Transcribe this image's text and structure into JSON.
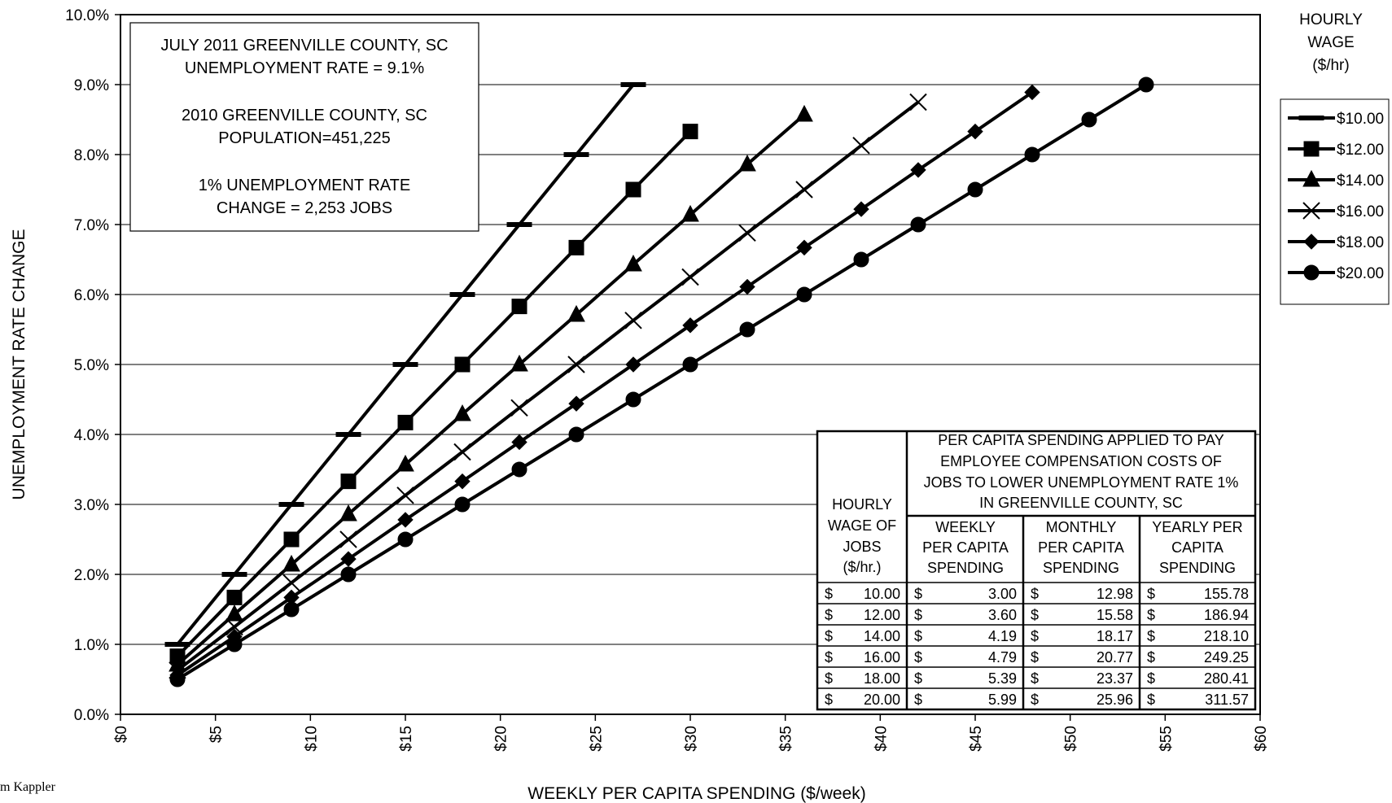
{
  "chart_data": {
    "type": "line",
    "xlabel": "WEEKLY PER CAPITA SPENDING ($/week)",
    "ylabel": "UNEMPLOYMENT RATE  CHANGE",
    "xlim": [
      0,
      60
    ],
    "ylim": [
      0,
      10
    ],
    "x_ticks": [
      "$0",
      "$5",
      "$10",
      "$15",
      "$20",
      "$25",
      "$30",
      "$35",
      "$40",
      "$45",
      "$50",
      "$55",
      "$60"
    ],
    "y_ticks": [
      "0.0%",
      "1.0%",
      "2.0%",
      "3.0%",
      "4.0%",
      "5.0%",
      "6.0%",
      "7.0%",
      "8.0%",
      "9.0%",
      "10.0%"
    ],
    "grid": "horizontal",
    "legend_title": [
      "HOURLY",
      "WAGE",
      "($/hr)"
    ],
    "legend_position": "right",
    "series": [
      {
        "name": "$10.00",
        "marker": "dash",
        "x": [
          3,
          6,
          9,
          12,
          15,
          18,
          21,
          24,
          27
        ],
        "y": [
          1,
          2,
          3,
          4,
          5,
          6,
          7,
          8,
          9
        ]
      },
      {
        "name": "$12.00",
        "marker": "square",
        "x": [
          3,
          6,
          9,
          12,
          15,
          18,
          21,
          24,
          27,
          30
        ],
        "y": [
          0.83,
          1.67,
          2.5,
          3.33,
          4.17,
          5.0,
          5.83,
          6.67,
          7.5,
          8.33
        ]
      },
      {
        "name": "$14.00",
        "marker": "triangle",
        "x": [
          3,
          6,
          9,
          12,
          15,
          18,
          21,
          24,
          27,
          30,
          33,
          36
        ],
        "y": [
          0.71,
          1.43,
          2.14,
          2.86,
          3.57,
          4.29,
          5.0,
          5.71,
          6.43,
          7.14,
          7.86,
          8.57
        ]
      },
      {
        "name": "$16.00",
        "marker": "x",
        "x": [
          3,
          6,
          9,
          12,
          15,
          18,
          21,
          24,
          27,
          30,
          33,
          36,
          39,
          42
        ],
        "y": [
          0.63,
          1.25,
          1.88,
          2.5,
          3.13,
          3.75,
          4.38,
          5.0,
          5.63,
          6.25,
          6.88,
          7.5,
          8.13,
          8.75
        ]
      },
      {
        "name": "$18.00",
        "marker": "diamond",
        "x": [
          3,
          6,
          9,
          12,
          15,
          18,
          21,
          24,
          27,
          30,
          33,
          36,
          39,
          42,
          45,
          48
        ],
        "y": [
          0.56,
          1.11,
          1.67,
          2.22,
          2.78,
          3.33,
          3.89,
          4.44,
          5.0,
          5.56,
          6.11,
          6.67,
          7.22,
          7.78,
          8.33,
          8.89
        ]
      },
      {
        "name": "$20.00",
        "marker": "circle",
        "x": [
          3,
          6,
          9,
          12,
          15,
          18,
          21,
          24,
          27,
          30,
          33,
          36,
          39,
          42,
          45,
          48,
          51,
          54
        ],
        "y": [
          0.5,
          1.0,
          1.5,
          2.0,
          2.5,
          3.0,
          3.5,
          4.0,
          4.5,
          5.0,
          5.5,
          6.0,
          6.5,
          7.0,
          7.5,
          8.0,
          8.5,
          9.0
        ]
      }
    ],
    "annotation": [
      "JULY 2011 GREENVILLE COUNTY, SC",
      "UNEMPLOYMENT  RATE = 9.1%",
      "2010 GREENVILLE COUNTY, SC",
      "POPULATION=451,225",
      "1% UNEMPLOYMENT RATE",
      "CHANGE = 2,253 JOBS"
    ],
    "table": {
      "title": [
        "PER CAPITA SPENDING APPLIED TO PAY",
        "EMPLOYEE COMPENSATION COSTS OF",
        "JOBS TO LOWER UNEMPLOYMENT RATE 1%",
        "IN GREENVILLE COUNTY, SC"
      ],
      "row_header": [
        "HOURLY",
        "WAGE OF",
        "JOBS",
        "($/hr.)"
      ],
      "col_headers": [
        [
          "WEEKLY",
          "PER CAPITA",
          "SPENDING"
        ],
        [
          "MONTHLY",
          "PER CAPITA",
          "SPENDING"
        ],
        [
          "YEARLY  PER",
          "CAPITA",
          "SPENDING"
        ]
      ],
      "currency": "$",
      "rows": [
        [
          "10.00",
          "3.00",
          "12.98",
          "155.78"
        ],
        [
          "12.00",
          "3.60",
          "15.58",
          "186.94"
        ],
        [
          "14.00",
          "4.19",
          "18.17",
          "218.10"
        ],
        [
          "16.00",
          "4.79",
          "20.77",
          "249.25"
        ],
        [
          "18.00",
          "5.39",
          "23.37",
          "280.41"
        ],
        [
          "20.00",
          "5.99",
          "25.96",
          "311.57"
        ]
      ]
    }
  },
  "credit": "m Kappler"
}
